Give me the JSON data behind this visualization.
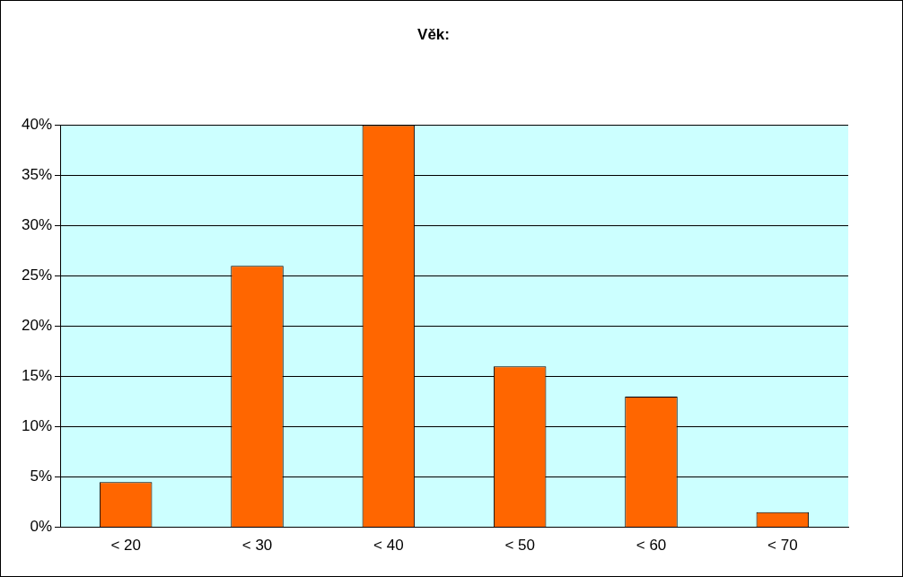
{
  "chart_data": {
    "type": "bar",
    "title": "Věk:",
    "categories": [
      "< 20",
      "< 30",
      "< 40",
      "< 50",
      "< 60",
      "< 70"
    ],
    "values": [
      4.5,
      26,
      40,
      16,
      13,
      1.5
    ],
    "color": "#ff6600",
    "ylim": [
      0,
      40
    ],
    "yticks": [
      {
        "value": 0,
        "label": "0%"
      },
      {
        "value": 5,
        "label": "5%"
      },
      {
        "value": 10,
        "label": "10%"
      },
      {
        "value": 15,
        "label": "15%"
      },
      {
        "value": 20,
        "label": "20%"
      },
      {
        "value": 25,
        "label": "25%"
      },
      {
        "value": 30,
        "label": "30%"
      },
      {
        "value": 35,
        "label": "35%"
      },
      {
        "value": 40,
        "label": "40%"
      }
    ],
    "grid": "y",
    "legend": false
  }
}
